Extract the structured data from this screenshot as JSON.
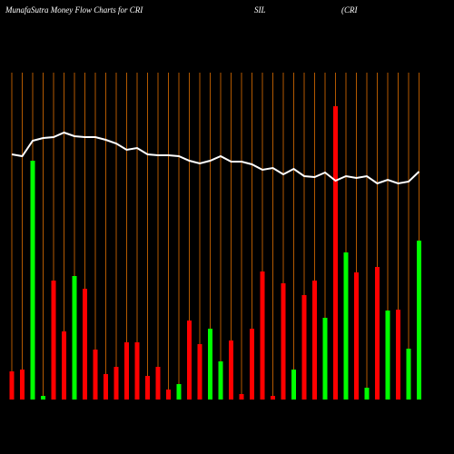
{
  "chart_data": {
    "type": "bar",
    "title": "MunafaSutra  Money Flow  Charts for CRI",
    "title_parts": [
      "SIL",
      "(CRI"
    ],
    "categories": [
      null,
      null,
      null,
      null,
      null,
      null,
      null,
      null,
      null,
      null,
      null,
      null,
      null,
      null,
      null,
      null,
      null,
      null,
      null,
      null,
      null,
      null,
      null,
      null,
      null,
      null,
      null,
      null,
      null,
      null,
      null,
      null,
      null,
      null,
      null,
      null,
      null,
      null,
      null,
      null
    ],
    "values": [
      31,
      33,
      263,
      4,
      131,
      75,
      136,
      122,
      55,
      28,
      36,
      63,
      63,
      26,
      36,
      11,
      17,
      87,
      61,
      78,
      42,
      65,
      6,
      78,
      141,
      4,
      128,
      33,
      115,
      131,
      90,
      323,
      162,
      140,
      13,
      146,
      98,
      99,
      56,
      175
    ],
    "colors": [
      "#ff0000",
      "#ff0000",
      "#00ff00",
      "#00ff00",
      "#ff0000",
      "#ff0000",
      "#00ff00",
      "#ff0000",
      "#ff0000",
      "#ff0000",
      "#ff0000",
      "#ff0000",
      "#ff0000",
      "#ff0000",
      "#ff0000",
      "#ff0000",
      "#00ff00",
      "#ff0000",
      "#ff0000",
      "#00ff00",
      "#00ff00",
      "#ff0000",
      "#ff0000",
      "#ff0000",
      "#ff0000",
      "#ff0000",
      "#ff0000",
      "#00ff00",
      "#ff0000",
      "#ff0000",
      "#00ff00",
      "#ff0000",
      "#00ff00",
      "#ff0000",
      "#00ff00",
      "#ff0000",
      "#00ff00",
      "#ff0000",
      "#00ff00",
      "#00ff00"
    ],
    "line": {
      "color": "#ffffff",
      "values": [
        270,
        268,
        285,
        288,
        289,
        294,
        290,
        289,
        289,
        286,
        282,
        275,
        277,
        270,
        269,
        269,
        268,
        263,
        260,
        263,
        268,
        262,
        262,
        259,
        253,
        255,
        248,
        254,
        246,
        245,
        250,
        241,
        246,
        244,
        246,
        238,
        242,
        238,
        240,
        251
      ]
    },
    "ylim": [
      0,
      360
    ],
    "grid": true,
    "grid_color": "#b35900"
  }
}
